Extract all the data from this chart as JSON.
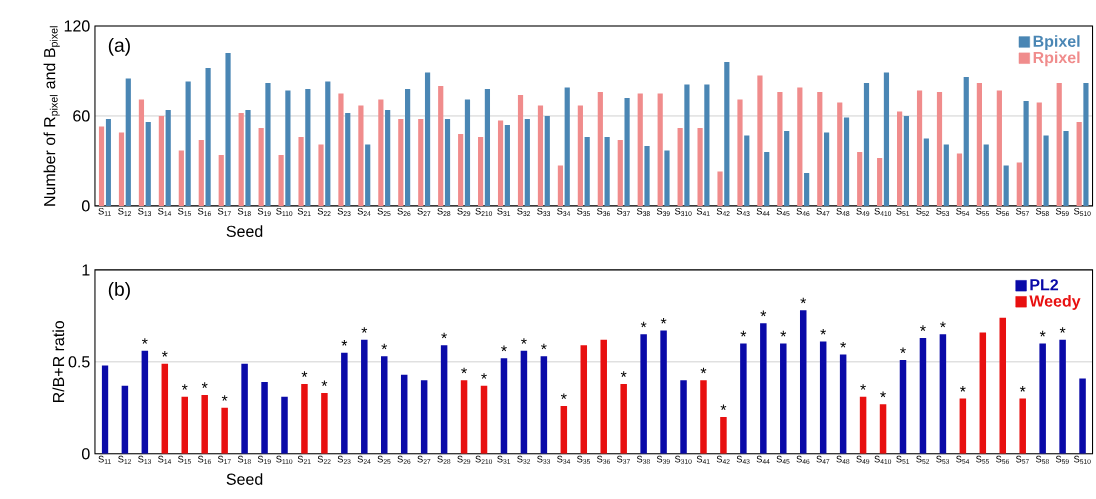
{
  "chart_data": [
    {
      "type": "bar",
      "xlabel": "Seed",
      "ylabel": "Number of R$_{pixel}$ and B$_{pixel}$",
      "annotations": [
        "(a)"
      ],
      "categories": [
        "S$_{11}$",
        "S$_{12}$",
        "S$_{13}$",
        "S$_{14}$",
        "S$_{15}$",
        "S$_{16}$",
        "S$_{17}$",
        "S$_{18}$",
        "S$_{19}$",
        "S$_{110}$",
        "S$_{21}$",
        "S$_{22}$",
        "S$_{23}$",
        "S$_{24}$",
        "S$_{25}$",
        "S$_{26}$",
        "S$_{27}$",
        "S$_{28}$",
        "S$_{29}$",
        "S$_{210}$",
        "S$_{31}$",
        "S$_{32}$",
        "S$_{33}$",
        "S$_{34}$",
        "S$_{35}$",
        "S$_{36}$",
        "S$_{37}$",
        "S$_{38}$",
        "S$_{39}$",
        "S$_{310}$",
        "S$_{41}$",
        "S$_{42}$",
        "S$_{43}$",
        "S$_{44}$",
        "S$_{45}$",
        "S$_{46}$",
        "S$_{47}$",
        "S$_{48}$",
        "S$_{49}$",
        "S$_{410}$",
        "S$_{51}$",
        "S$_{52}$",
        "S$_{53}$",
        "S$_{54}$",
        "S$_{55}$",
        "S$_{56}$",
        "S$_{57}$",
        "S$_{58}$",
        "S$_{59}$",
        "S$_{510}$"
      ],
      "series": [
        {
          "name": "Rpixel",
          "color": "#f08c8c",
          "values": [
            53,
            49,
            71,
            60,
            37,
            44,
            34,
            62,
            52,
            34,
            46,
            41,
            75,
            67,
            71,
            58,
            58,
            80,
            48,
            46,
            57,
            74,
            67,
            27,
            67,
            76,
            44,
            75,
            75,
            52,
            52,
            23,
            71,
            87,
            76,
            79,
            76,
            69,
            36,
            32,
            63,
            77,
            76,
            35,
            82,
            77,
            29,
            69,
            82,
            56
          ]
        },
        {
          "name": "Bpixel",
          "color": "#4a86b4",
          "values": [
            58,
            85,
            56,
            64,
            83,
            92,
            102,
            64,
            82,
            77,
            78,
            83,
            62,
            41,
            64,
            78,
            89,
            58,
            71,
            78,
            54,
            58,
            60,
            79,
            46,
            46,
            72,
            40,
            37,
            81,
            81,
            96,
            47,
            36,
            50,
            22,
            49,
            59,
            82,
            89,
            60,
            45,
            41,
            86,
            41,
            27,
            70,
            47,
            50,
            82
          ]
        }
      ],
      "ylim": [
        0,
        120
      ],
      "yticks": [
        0,
        60,
        120
      ],
      "grid": "y",
      "legend": "top right"
    },
    {
      "type": "bar",
      "xlabel": "Seed",
      "ylabel": "R/B+R ratio",
      "annotations": [
        "(b)"
      ],
      "categories": [
        "S$_{11}$",
        "S$_{12}$",
        "S$_{13}$",
        "S$_{14}$",
        "S$_{15}$",
        "S$_{16}$",
        "S$_{17}$",
        "S$_{18}$",
        "S$_{19}$",
        "S$_{110}$",
        "S$_{21}$",
        "S$_{22}$",
        "S$_{23}$",
        "S$_{24}$",
        "S$_{25}$",
        "S$_{26}$",
        "S$_{27}$",
        "S$_{28}$",
        "S$_{29}$",
        "S$_{210}$",
        "S$_{31}$",
        "S$_{32}$",
        "S$_{33}$",
        "S$_{34}$",
        "S$_{35}$",
        "S$_{36}$",
        "S$_{37}$",
        "S$_{38}$",
        "S$_{39}$",
        "S$_{310}$",
        "S$_{41}$",
        "S$_{42}$",
        "S$_{43}$",
        "S$_{44}$",
        "S$_{45}$",
        "S$_{46}$",
        "S$_{47}$",
        "S$_{48}$",
        "S$_{49}$",
        "S$_{410}$",
        "S$_{51}$",
        "S$_{52}$",
        "S$_{53}$",
        "S$_{54}$",
        "S$_{55}$",
        "S$_{56}$",
        "S$_{57}$",
        "S$_{58}$",
        "S$_{59}$",
        "S$_{510}$"
      ],
      "series": [
        {
          "name": "Weedy",
          "color": "#e81010",
          "values": [
            null,
            null,
            null,
            0.49,
            0.31,
            0.32,
            0.25,
            null,
            null,
            null,
            0.38,
            0.33,
            null,
            null,
            null,
            null,
            null,
            null,
            0.4,
            0.37,
            null,
            null,
            null,
            0.26,
            0.59,
            0.62,
            0.38,
            null,
            null,
            null,
            0.4,
            0.2,
            null,
            null,
            null,
            null,
            null,
            null,
            0.31,
            0.27,
            null,
            null,
            null,
            0.3,
            0.66,
            0.74,
            0.3,
            null,
            null,
            null
          ],
          "value_labels": [
            null,
            null,
            null,
            "*",
            "*",
            "*",
            "*",
            null,
            null,
            null,
            "*",
            "*",
            null,
            null,
            null,
            null,
            null,
            null,
            "*",
            "*",
            null,
            null,
            null,
            "*",
            null,
            null,
            "*",
            null,
            null,
            null,
            "*",
            "*",
            null,
            null,
            null,
            null,
            null,
            null,
            "*",
            "*",
            null,
            null,
            null,
            "*",
            null,
            null,
            "*",
            null,
            null,
            null
          ]
        },
        {
          "name": "PL2",
          "color": "#0a0aa8",
          "values": [
            0.48,
            0.37,
            0.56,
            null,
            null,
            null,
            null,
            0.49,
            0.39,
            0.31,
            null,
            null,
            0.55,
            0.62,
            0.53,
            0.43,
            0.4,
            0.59,
            null,
            null,
            0.52,
            0.56,
            0.53,
            null,
            null,
            null,
            null,
            0.65,
            0.67,
            0.4,
            null,
            null,
            0.6,
            0.71,
            0.6,
            0.78,
            0.61,
            0.54,
            null,
            null,
            0.51,
            0.63,
            0.65,
            null,
            null,
            null,
            null,
            0.6,
            0.62,
            0.41
          ],
          "value_labels": [
            null,
            null,
            "*",
            null,
            null,
            null,
            null,
            null,
            null,
            null,
            null,
            null,
            "*",
            "*",
            "*",
            null,
            null,
            "*",
            null,
            null,
            "*",
            "*",
            "*",
            null,
            null,
            null,
            null,
            "*",
            "*",
            null,
            null,
            null,
            "*",
            "*",
            "*",
            "*",
            "*",
            "*",
            null,
            null,
            "*",
            "*",
            "*",
            null,
            null,
            null,
            null,
            "*",
            "*",
            null
          ]
        }
      ],
      "ylim": [
        0,
        1
      ],
      "yticks": [
        0,
        0.5,
        1
      ],
      "grid": "y",
      "legend": "top right"
    }
  ]
}
